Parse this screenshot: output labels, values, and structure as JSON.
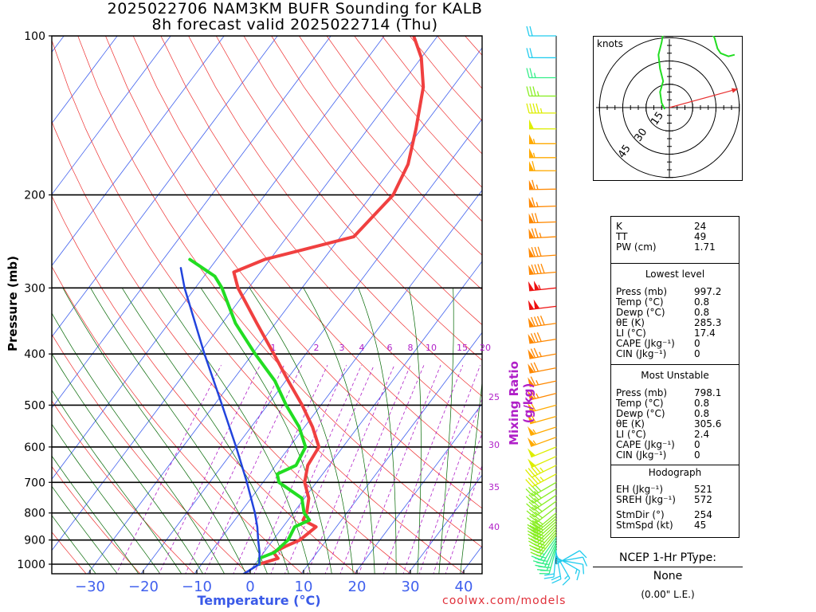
{
  "title_line1": "2025022706 NAM3KM BUFR Sounding for KALB",
  "title_line2": "8h forecast valid 2025022714 (Thu)",
  "footer": "coolwx.com/models",
  "colors": {
    "temp": "#f04040",
    "dew": "#22dd22",
    "parcel": "#2244dd",
    "isotherm": "#4060ee",
    "dry_adiabat": "#ee3030",
    "moist_adiabat": "#006600",
    "mixing_ratio": "#b020c8"
  },
  "chart_data": {
    "type": "line",
    "subtype": "skew-T log-P",
    "xlabel": "Temperature (°C)",
    "ylabel": "Pressure (mb)",
    "x_ticks": [
      "−30",
      "−20",
      "−10",
      "0",
      "10",
      "20",
      "30",
      "40"
    ],
    "y_ticks": [
      "100",
      "200",
      "300",
      "400",
      "500",
      "600",
      "700",
      "800",
      "900",
      "1000"
    ],
    "ylim": [
      1050,
      100
    ],
    "y_scale": "log",
    "grid": true,
    "mixing_ratio_label": "Mixing Ratio (g/kg)",
    "mixing_ratio_ticks": [
      "1",
      "2",
      "3",
      "4",
      "6",
      "8",
      "10",
      "15",
      "20",
      "25",
      "30",
      "35",
      "40"
    ],
    "series": [
      {
        "name": "Temperature",
        "points": [
          [
            1000,
            0.8
          ],
          [
            975,
            3.5
          ],
          [
            950,
            1.8
          ],
          [
            925,
            3.2
          ],
          [
            900,
            5.0
          ],
          [
            850,
            6.2
          ],
          [
            825,
            2.8
          ],
          [
            800,
            2.5
          ],
          [
            750,
            0.8
          ],
          [
            700,
            -2.2
          ],
          [
            650,
            -4.0
          ],
          [
            600,
            -4.5
          ],
          [
            550,
            -8.5
          ],
          [
            500,
            -13.5
          ],
          [
            450,
            -19.5
          ],
          [
            400,
            -26.0
          ],
          [
            350,
            -33.5
          ],
          [
            300,
            -42.0
          ],
          [
            280,
            -45.0
          ],
          [
            265,
            -41.0
          ],
          [
            240,
            -27.5
          ],
          [
            200,
            -26.0
          ],
          [
            175,
            -27.5
          ],
          [
            150,
            -31.0
          ],
          [
            125,
            -35.5
          ],
          [
            110,
            -40.0
          ],
          [
            100,
            -44.5
          ]
        ]
      },
      {
        "name": "Dew Point",
        "points": [
          [
            1000,
            0.8
          ],
          [
            975,
            0.0
          ],
          [
            950,
            2.0
          ],
          [
            900,
            2.8
          ],
          [
            850,
            2.2
          ],
          [
            825,
            4.0
          ],
          [
            800,
            2.0
          ],
          [
            750,
            -0.5
          ],
          [
            700,
            -7.0
          ],
          [
            675,
            -8.5
          ],
          [
            650,
            -6.2
          ],
          [
            600,
            -7.0
          ],
          [
            550,
            -11.0
          ],
          [
            500,
            -16.5
          ],
          [
            450,
            -22.0
          ],
          [
            400,
            -29.5
          ],
          [
            350,
            -37.5
          ],
          [
            300,
            -45.0
          ],
          [
            285,
            -48.0
          ],
          [
            265,
            -55.0
          ]
        ]
      },
      {
        "name": "Parcel",
        "points": [
          [
            1050,
            -1.0
          ],
          [
            1000,
            0.8
          ],
          [
            950,
            -0.8
          ],
          [
            900,
            -2.8
          ],
          [
            850,
            -4.8
          ],
          [
            800,
            -7.2
          ],
          [
            700,
            -13.0
          ],
          [
            600,
            -20.0
          ],
          [
            500,
            -28.5
          ],
          [
            400,
            -39.0
          ],
          [
            300,
            -52.0
          ],
          [
            275,
            -55.5
          ]
        ]
      }
    ],
    "wind_barbs": [
      {
        "p": 1000,
        "dir": 60,
        "spd": 10
      },
      {
        "p": 990,
        "dir": 80,
        "spd": 10
      },
      {
        "p": 980,
        "dir": 100,
        "spd": 10
      },
      {
        "p": 970,
        "dir": 120,
        "spd": 15
      },
      {
        "p": 960,
        "dir": 150,
        "spd": 15
      },
      {
        "p": 950,
        "dir": 170,
        "spd": 20
      },
      {
        "p": 940,
        "dir": 185,
        "spd": 20
      },
      {
        "p": 930,
        "dir": 195,
        "spd": 25
      },
      {
        "p": 920,
        "dir": 200,
        "spd": 25
      },
      {
        "p": 910,
        "dir": 205,
        "spd": 30
      },
      {
        "p": 900,
        "dir": 210,
        "spd": 30
      },
      {
        "p": 890,
        "dir": 215,
        "spd": 30
      },
      {
        "p": 880,
        "dir": 218,
        "spd": 35
      },
      {
        "p": 870,
        "dir": 220,
        "spd": 35
      },
      {
        "p": 860,
        "dir": 222,
        "spd": 35
      },
      {
        "p": 850,
        "dir": 225,
        "spd": 40
      },
      {
        "p": 840,
        "dir": 226,
        "spd": 40
      },
      {
        "p": 830,
        "dir": 228,
        "spd": 40
      },
      {
        "p": 820,
        "dir": 229,
        "spd": 40
      },
      {
        "p": 810,
        "dir": 230,
        "spd": 40
      },
      {
        "p": 800,
        "dir": 230,
        "spd": 40
      },
      {
        "p": 780,
        "dir": 232,
        "spd": 40
      },
      {
        "p": 760,
        "dir": 234,
        "spd": 40
      },
      {
        "p": 740,
        "dir": 236,
        "spd": 40
      },
      {
        "p": 720,
        "dir": 238,
        "spd": 40
      },
      {
        "p": 700,
        "dir": 240,
        "spd": 40
      },
      {
        "p": 675,
        "dir": 242,
        "spd": 45
      },
      {
        "p": 650,
        "dir": 244,
        "spd": 45
      },
      {
        "p": 625,
        "dir": 246,
        "spd": 50
      },
      {
        "p": 600,
        "dir": 248,
        "spd": 50
      },
      {
        "p": 575,
        "dir": 250,
        "spd": 55
      },
      {
        "p": 550,
        "dir": 252,
        "spd": 55
      },
      {
        "p": 525,
        "dir": 254,
        "spd": 60
      },
      {
        "p": 500,
        "dir": 255,
        "spd": 60
      },
      {
        "p": 475,
        "dir": 256,
        "spd": 65
      },
      {
        "p": 450,
        "dir": 258,
        "spd": 65
      },
      {
        "p": 425,
        "dir": 259,
        "spd": 70
      },
      {
        "p": 400,
        "dir": 260,
        "spd": 75
      },
      {
        "p": 375,
        "dir": 261,
        "spd": 80
      },
      {
        "p": 350,
        "dir": 262,
        "spd": 90
      },
      {
        "p": 325,
        "dir": 263,
        "spd": 100
      },
      {
        "p": 300,
        "dir": 264,
        "spd": 105
      },
      {
        "p": 280,
        "dir": 265,
        "spd": 90
      },
      {
        "p": 260,
        "dir": 266,
        "spd": 80
      },
      {
        "p": 240,
        "dir": 267,
        "spd": 75
      },
      {
        "p": 225,
        "dir": 268,
        "spd": 70
      },
      {
        "p": 210,
        "dir": 268,
        "spd": 65
      },
      {
        "p": 195,
        "dir": 269,
        "spd": 65
      },
      {
        "p": 180,
        "dir": 270,
        "spd": 60
      },
      {
        "p": 170,
        "dir": 270,
        "spd": 55
      },
      {
        "p": 160,
        "dir": 270,
        "spd": 55
      },
      {
        "p": 150,
        "dir": 270,
        "spd": 50
      },
      {
        "p": 140,
        "dir": 270,
        "spd": 45
      },
      {
        "p": 130,
        "dir": 270,
        "spd": 35
      },
      {
        "p": 120,
        "dir": 270,
        "spd": 25
      },
      {
        "p": 110,
        "dir": 270,
        "spd": 20
      },
      {
        "p": 100,
        "dir": 270,
        "spd": 20
      }
    ],
    "hodograph": {
      "units": "knots",
      "ring_labels": [
        "15",
        "30",
        "45"
      ],
      "points": [
        [
          -3,
          -1
        ],
        [
          -5,
          3
        ],
        [
          -6,
          10
        ],
        [
          -4,
          17
        ],
        [
          -6,
          25
        ],
        [
          -7,
          34
        ],
        [
          -5,
          42
        ],
        [
          -4,
          48
        ],
        [
          -2,
          52
        ],
        [
          1,
          55
        ],
        [
          5,
          53
        ],
        [
          8,
          50
        ],
        [
          12,
          55
        ],
        [
          18,
          55
        ],
        [
          24,
          52
        ],
        [
          26,
          50
        ],
        [
          29,
          45
        ],
        [
          31,
          38
        ],
        [
          33,
          35
        ],
        [
          38,
          33
        ],
        [
          42,
          34
        ]
      ],
      "storm_motion_vector": [
        44,
        12
      ]
    }
  },
  "indices": {
    "top": [
      {
        "label": "K",
        "value": "24"
      },
      {
        "label": "TT",
        "value": "49"
      },
      {
        "label": "PW (cm)",
        "value": "1.71"
      }
    ],
    "lowest": {
      "header": "Lowest level",
      "rows": [
        {
          "label": "Press (mb)",
          "value": "997.2"
        },
        {
          "label": "Temp (°C)",
          "value": "0.8"
        },
        {
          "label": "Dewp (°C)",
          "value": "0.8"
        },
        {
          "label": "θE (K)",
          "value": "285.3"
        },
        {
          "label": "LI (°C)",
          "value": "17.4"
        },
        {
          "label": "CAPE (Jkg⁻¹)",
          "value": "0"
        },
        {
          "label": "CIN (Jkg⁻¹)",
          "value": "0"
        }
      ]
    },
    "unstable": {
      "header": "Most Unstable",
      "rows": [
        {
          "label": "Press (mb)",
          "value": "798.1"
        },
        {
          "label": "Temp (°C)",
          "value": "0.8"
        },
        {
          "label": "Dewp (°C)",
          "value": "0.8"
        },
        {
          "label": "θE (K)",
          "value": "305.6"
        },
        {
          "label": "LI (°C)",
          "value": "2.4"
        },
        {
          "label": "CAPE (Jkg⁻¹)",
          "value": "0"
        },
        {
          "label": "CIN (Jkg⁻¹)",
          "value": "0"
        }
      ]
    },
    "hodo": {
      "header": "Hodograph",
      "rows": [
        {
          "label": "EH (Jkg⁻¹)",
          "value": "521"
        },
        {
          "label": "SREH (Jkg⁻¹)",
          "value": "572"
        },
        {
          "label": "StmDir (°)",
          "value": "254"
        },
        {
          "label": "StmSpd (kt)",
          "value": "45"
        }
      ]
    }
  },
  "ptype": {
    "title": "NCEP 1-Hr PType:",
    "value": "None",
    "amount": "(0.00\" L.E.)"
  }
}
